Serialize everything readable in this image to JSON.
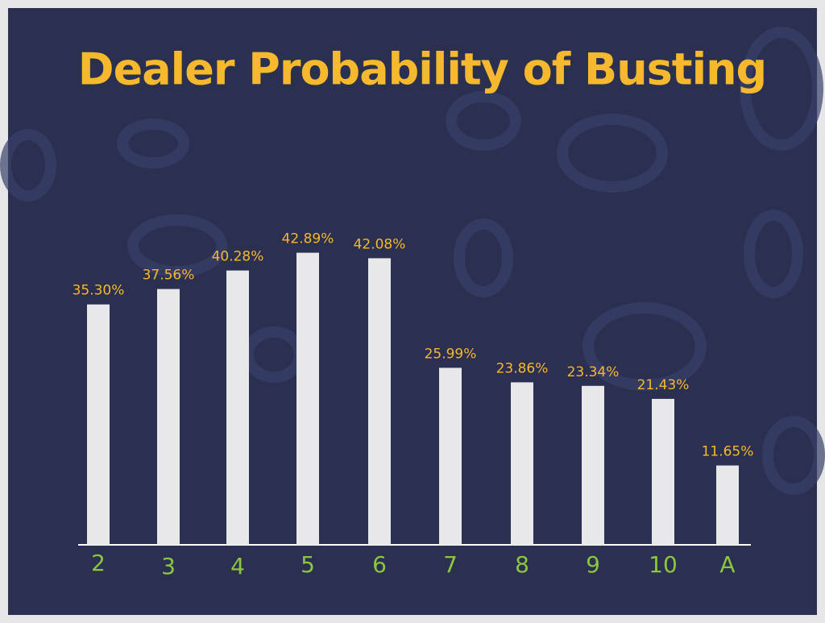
{
  "chart_data": {
    "type": "bar",
    "title": "Dealer Probability of Busting",
    "categories": [
      "2",
      "3",
      "4",
      "5",
      "6",
      "7",
      "8",
      "9",
      "10",
      "A"
    ],
    "values": [
      35.3,
      37.56,
      40.28,
      42.89,
      42.08,
      25.99,
      23.86,
      23.34,
      21.43,
      11.65
    ],
    "value_labels": [
      "35.30%",
      "37.56%",
      "40.28%",
      "42.89%",
      "42.08%",
      "25.99%",
      "23.86%",
      "23.34%",
      "21.43%",
      "11.65%"
    ],
    "color": "#e8e8ea"
  }
}
